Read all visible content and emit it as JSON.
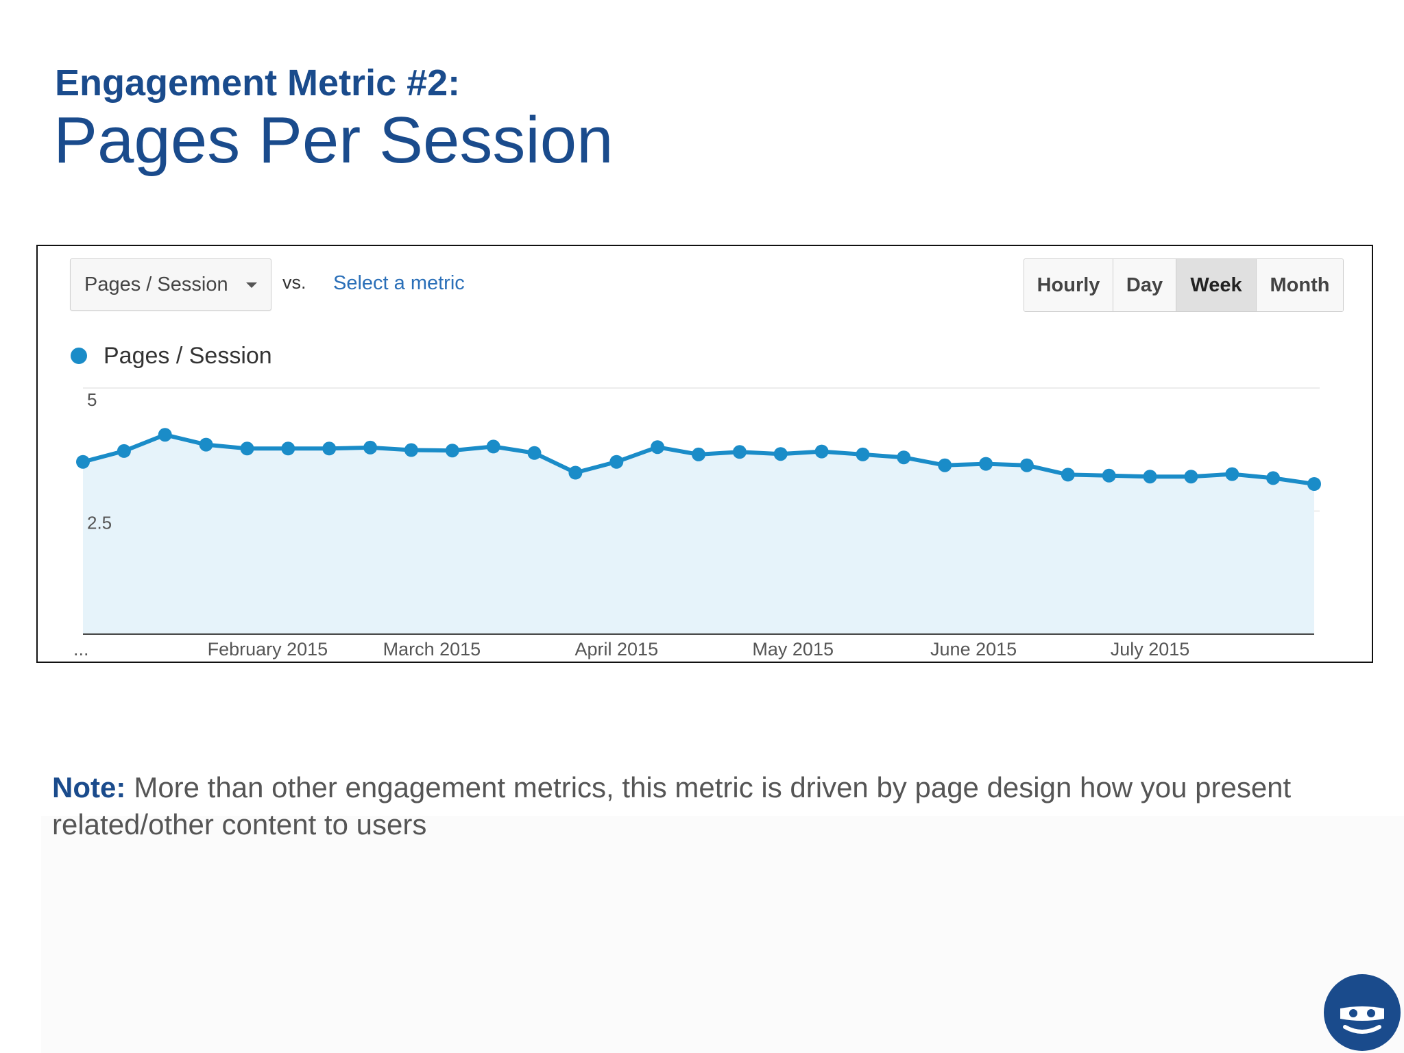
{
  "slide": {
    "title_line1": "Engagement Metric #2:",
    "title_line2": "Pages Per Session",
    "note_label": "Note:",
    "note_text": "More than other engagement metrics, this metric is driven by page design how you present related/other content to users"
  },
  "toolbar": {
    "metric_selector": "Pages / Session",
    "vs_label": "vs.",
    "compare_link": "Select a metric",
    "time_ranges": [
      "Hourly",
      "Day",
      "Week",
      "Month"
    ],
    "active_range": "Week"
  },
  "colors": {
    "title": "#1a4b8c",
    "series": "#1a8cc8",
    "area_fill": "#e6f3fa",
    "logo": "#1a4b8c"
  },
  "icons": {
    "selector_chevron": "chevron-down-icon",
    "logo": "eyes-logo-icon"
  },
  "chart_data": {
    "type": "area",
    "legend": "Pages / Session",
    "series": [
      {
        "name": "Pages / Session",
        "values": [
          3.5,
          3.72,
          4.05,
          3.85,
          3.77,
          3.77,
          3.77,
          3.79,
          3.74,
          3.73,
          3.81,
          3.68,
          3.28,
          3.5,
          3.8,
          3.65,
          3.7,
          3.66,
          3.71,
          3.65,
          3.59,
          3.43,
          3.46,
          3.43,
          3.24,
          3.22,
          3.2,
          3.2,
          3.25,
          3.17,
          3.05
        ]
      }
    ],
    "y_ticks": [
      "5",
      "2.5"
    ],
    "x_ticks": [
      {
        "label": "...",
        "index": 0
      },
      {
        "label": "February 2015",
        "index": 4.5
      },
      {
        "label": "March 2015",
        "index": 8.5
      },
      {
        "label": "April 2015",
        "index": 13
      },
      {
        "label": "May 2015",
        "index": 17.3
      },
      {
        "label": "June 2015",
        "index": 21.7
      },
      {
        "label": "July 2015",
        "index": 26
      }
    ],
    "ylim": [
      0,
      5
    ],
    "grid": true,
    "legend_position": "top-left"
  }
}
